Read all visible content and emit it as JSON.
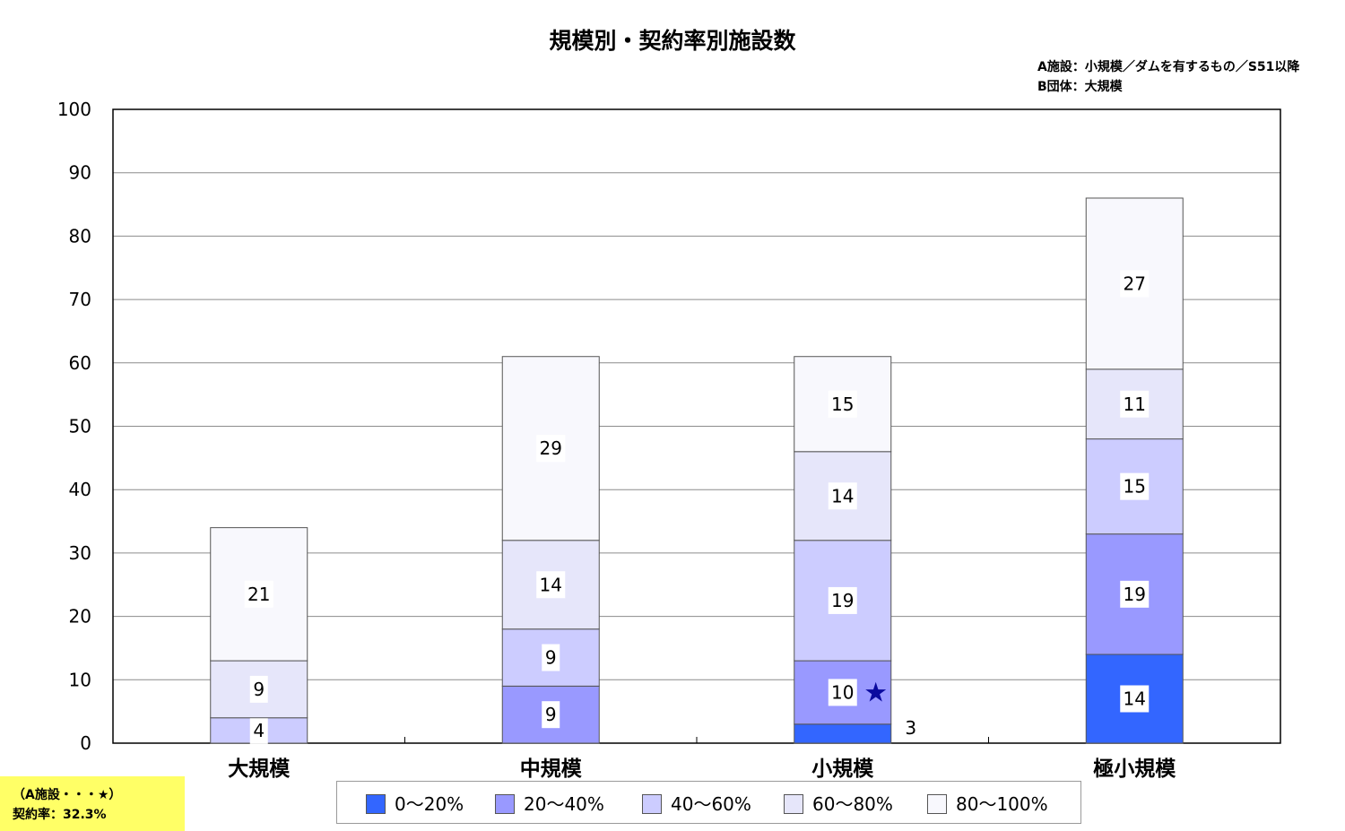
{
  "notes": {
    "line1": "A施設：小規模／ダムを有するもの／S51以降",
    "line2": "B団体：大規模"
  },
  "callout": {
    "line1": "（A施設・・・★）",
    "line2": "契約率：32.3%"
  },
  "marker": {
    "symbol": "★",
    "category_index": 2,
    "series_index": 1,
    "color": "#0a0a9e"
  },
  "chart_data": {
    "type": "bar",
    "stacked": true,
    "title": "規模別・契約率別施設数",
    "xlabel": "",
    "ylabel": "",
    "ylim": [
      0,
      100
    ],
    "yticks": [
      0,
      10,
      20,
      30,
      40,
      50,
      60,
      70,
      80,
      90,
      100
    ],
    "grid": true,
    "legend_position": "bottom",
    "categories": [
      "大規模",
      "中規模",
      "小規模",
      "極小規模"
    ],
    "series": [
      {
        "name": "0〜20%",
        "color": "#3366ff",
        "values": [
          0,
          0,
          3,
          14
        ]
      },
      {
        "name": "20〜40%",
        "color": "#9999ff",
        "values": [
          0,
          9,
          10,
          19
        ]
      },
      {
        "name": "40〜60%",
        "color": "#ccccff",
        "values": [
          4,
          9,
          19,
          15
        ]
      },
      {
        "name": "60〜80%",
        "color": "#e6e6fa",
        "values": [
          9,
          14,
          14,
          11
        ]
      },
      {
        "name": "80〜100%",
        "color": "#f8f8fd",
        "values": [
          21,
          29,
          15,
          27
        ]
      }
    ]
  }
}
